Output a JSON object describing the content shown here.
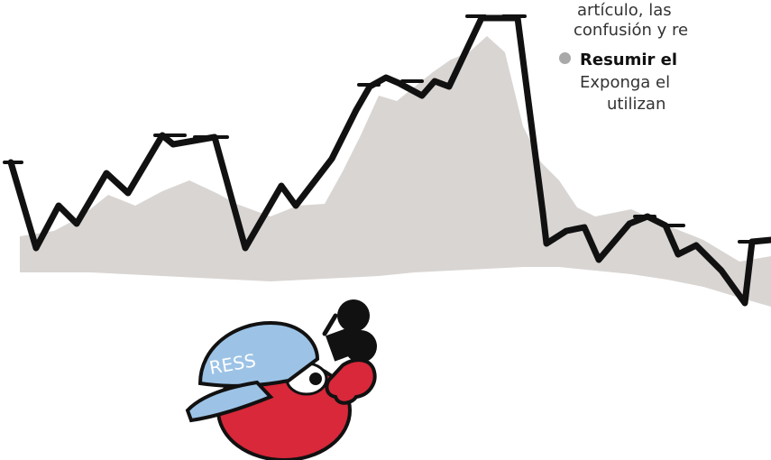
{
  "text_fragments": {
    "line_1": "artículo,  las",
    "line_2": "confusión y re",
    "bullet_title": "Resumir el",
    "line_4": "Exponga el",
    "line_5": "utilizan"
  },
  "cap_lettering": "RESS",
  "colors": {
    "ink": "#111111",
    "mountain": "#d9d5d3",
    "cap": "#9cc3e6",
    "character": "#d8283a",
    "bullet": "#a9a9a9",
    "text": "#333333"
  }
}
